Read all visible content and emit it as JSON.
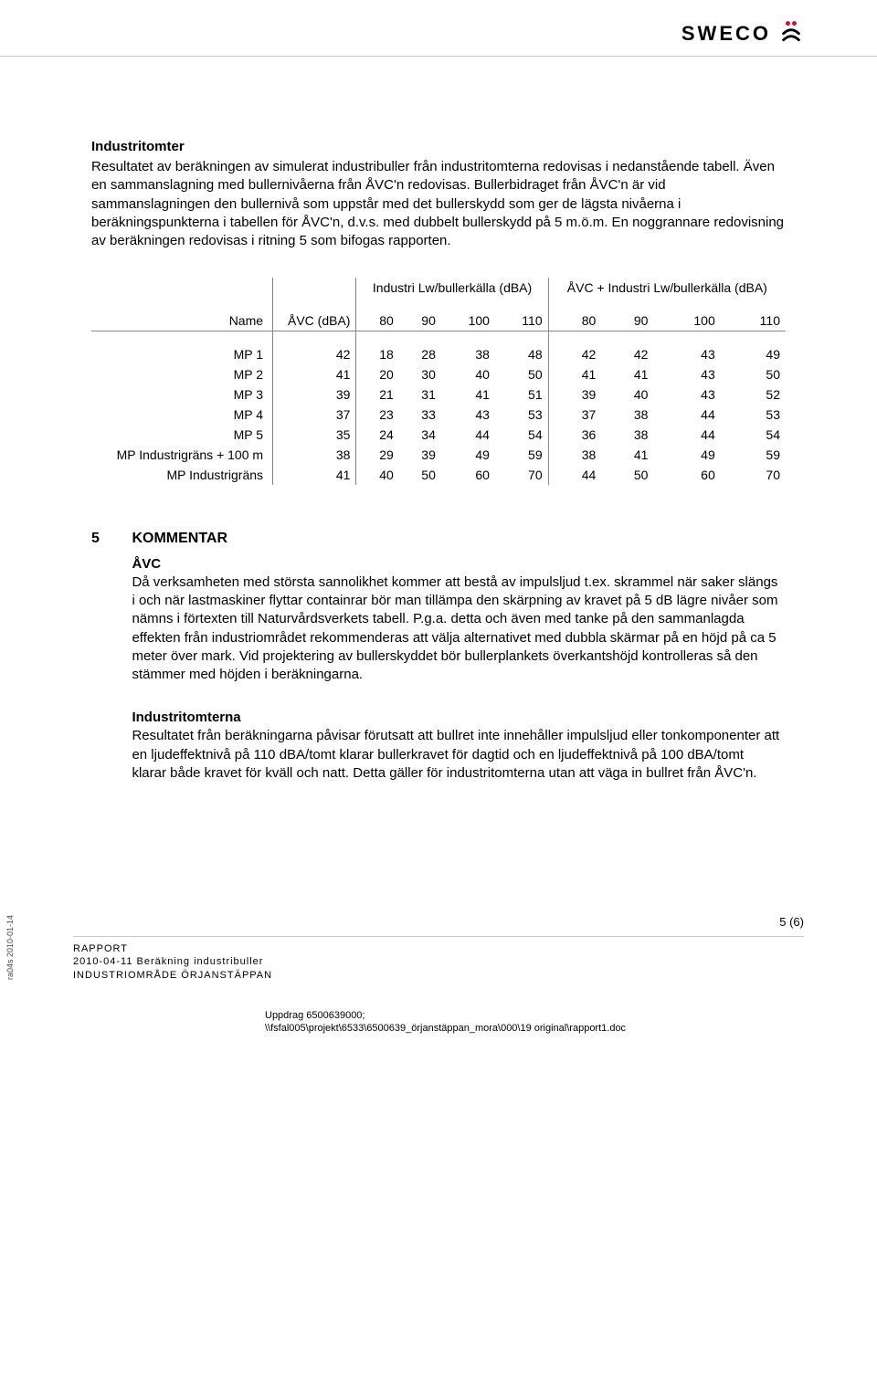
{
  "logo": {
    "text": "SWECO"
  },
  "sec1": {
    "title": "Industritomter",
    "para": "Resultatet av beräkningen av simulerat industribuller från industritomterna redovisas i nedanstående tabell. Även en sammanslagning med bullernivåerna från ÅVC'n redovisas. Bullerbidraget från ÅVC'n är vid sammanslagningen den bullernivå som uppstår med det bullerskydd som ger de lägsta nivåerna i beräkningspunkterna i tabellen för ÅVC'n, d.v.s. med dubbelt bullerskydd på 5 m.ö.m. En noggrannare redovisning av beräkningen redovisas i ritning 5 som bifogas rapporten."
  },
  "table": {
    "group1_label": "Industri Lw/bullerkälla (dBA)",
    "group2_label": "ÅVC + Industri Lw/bullerkälla (dBA)",
    "name_col": "Name",
    "avc_col": "ÅVC (dBA)",
    "levels_a": [
      "80",
      "90",
      "100",
      "110"
    ],
    "levels_b": [
      "80",
      "90",
      "100",
      "110"
    ],
    "rows": [
      {
        "name": "MP 1",
        "avc": "42",
        "a": [
          "18",
          "28",
          "38",
          "48"
        ],
        "b": [
          "42",
          "42",
          "43",
          "49"
        ]
      },
      {
        "name": "MP 2",
        "avc": "41",
        "a": [
          "20",
          "30",
          "40",
          "50"
        ],
        "b": [
          "41",
          "41",
          "43",
          "50"
        ]
      },
      {
        "name": "MP 3",
        "avc": "39",
        "a": [
          "21",
          "31",
          "41",
          "51"
        ],
        "b": [
          "39",
          "40",
          "43",
          "52"
        ]
      },
      {
        "name": "MP 4",
        "avc": "37",
        "a": [
          "23",
          "33",
          "43",
          "53"
        ],
        "b": [
          "37",
          "38",
          "44",
          "53"
        ]
      },
      {
        "name": "MP 5",
        "avc": "35",
        "a": [
          "24",
          "34",
          "44",
          "54"
        ],
        "b": [
          "36",
          "38",
          "44",
          "54"
        ]
      },
      {
        "name": "MP Industrigräns + 100 m",
        "avc": "38",
        "a": [
          "29",
          "39",
          "49",
          "59"
        ],
        "b": [
          "38",
          "41",
          "49",
          "59"
        ]
      },
      {
        "name": "MP Industrigräns",
        "avc": "41",
        "a": [
          "40",
          "50",
          "60",
          "70"
        ],
        "b": [
          "44",
          "50",
          "60",
          "70"
        ]
      }
    ]
  },
  "kommentar": {
    "num": "5",
    "title": "KOMMENTAR",
    "sub1_title": "ÅVC",
    "sub1_para": "Då verksamheten med största sannolikhet kommer att bestå av impulsljud t.ex. skrammel när saker slängs i och när lastmaskiner flyttar containrar bör man tillämpa den skärpning av kravet på 5 dB lägre nivåer som nämns i förtexten till Naturvårdsverkets tabell. P.g.a. detta och även med tanke på den sammanlagda effekten från industriområdet rekommenderas att välja alternativet med dubbla skärmar på en höjd på ca 5 meter över mark. Vid projektering av bullerskyddet bör bullerplankets överkantshöjd kontrolleras så den stämmer med höjden i beräkningarna.",
    "sub2_title": "Industritomterna",
    "sub2_para": "Resultatet från beräkningarna påvisar förutsatt att bullret inte innehåller impulsljud eller tonkomponenter att en ljudeffektnivå på 110 dBA/tomt klarar bullerkravet för dagtid och en ljudeffektnivå på 100 dBA/tomt klarar både kravet för kväll och natt. Detta gäller för industritomterna utan att väga in bullret från ÅVC'n."
  },
  "footer": {
    "page": "5 (6)",
    "l1": "RAPPORT",
    "l2": "2010-04-11 Beräkning industribuller",
    "l3": "INDUSTRIOMRÅDE ÖRJANSTÄPPAN",
    "s1": "Uppdrag 6500639000;",
    "s2": "\\\\fsfal005\\projekt\\6533\\6500639_örjanstäppan_mora\\000\\19 original\\rapport1.doc"
  },
  "stamp": "ra04s 2010-01-14"
}
